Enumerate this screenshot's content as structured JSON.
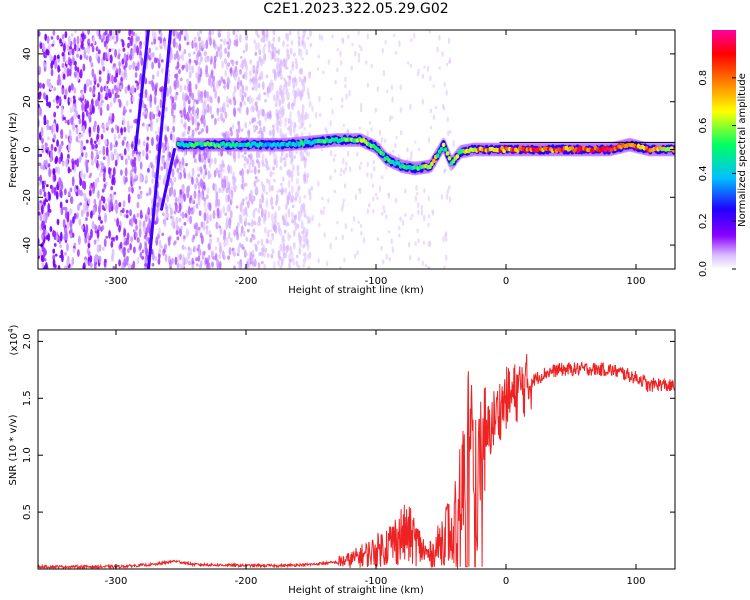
{
  "figure_title": "C2E1.2023.322.05.29.G02",
  "colorbar": {
    "label": "Normalized spectral amplitude",
    "ticks": [
      0.0,
      0.2,
      0.4,
      0.6,
      0.8
    ],
    "tick_labels": [
      "0.0",
      "0.2",
      "0.4",
      "0.6",
      "0.8"
    ],
    "range": [
      0.0,
      1.0
    ],
    "colors": [
      "#ffffff",
      "#8a00ff",
      "#2000ff",
      "#00c0ff",
      "#00ff60",
      "#ffff00",
      "#ff8000",
      "#ff0000",
      "#ff00a0"
    ]
  },
  "chart_data": [
    {
      "type": "heatmap",
      "title": "",
      "xlabel": "Height of straight line (km)",
      "ylabel": "Frequency (Hz)",
      "xlim": [
        -360,
        130
      ],
      "ylim": [
        -50,
        50
      ],
      "x_ticks": [
        -300,
        -200,
        -100,
        0,
        100
      ],
      "x_tick_labels": [
        "-300",
        "-200",
        "-100",
        "0",
        "100"
      ],
      "y_ticks": [
        -40,
        -20,
        0,
        20,
        40
      ],
      "y_tick_labels": [
        "-40",
        "-20",
        "0",
        "20",
        "40"
      ],
      "noise_region_x": [
        -360,
        -150
      ],
      "streaks": [
        {
          "x_top": -275,
          "y_top": 50,
          "x_bottom": -285,
          "y_bottom": 0
        },
        {
          "x_top": -255,
          "y_top": 0,
          "x_bottom": -265,
          "y_bottom": -25
        },
        {
          "x_top": -258,
          "y_top": 50,
          "x_bottom": -275,
          "y_bottom": -50
        }
      ],
      "ridge": [
        {
          "x": -252,
          "y": 2,
          "amp": 0.5
        },
        {
          "x": -230,
          "y": 2,
          "amp": 0.55
        },
        {
          "x": -210,
          "y": 2,
          "amp": 0.5
        },
        {
          "x": -190,
          "y": 2,
          "amp": 0.45
        },
        {
          "x": -170,
          "y": 2,
          "amp": 0.45
        },
        {
          "x": -150,
          "y": 3,
          "amp": 0.5
        },
        {
          "x": -130,
          "y": 4,
          "amp": 0.55
        },
        {
          "x": -112,
          "y": 4,
          "amp": 0.6
        },
        {
          "x": -100,
          "y": 1,
          "amp": 0.55
        },
        {
          "x": -92,
          "y": -4,
          "amp": 0.5
        },
        {
          "x": -80,
          "y": -7,
          "amp": 0.55
        },
        {
          "x": -70,
          "y": -8,
          "amp": 0.5
        },
        {
          "x": -58,
          "y": -7,
          "amp": 0.7
        },
        {
          "x": -48,
          "y": 2,
          "amp": 0.6
        },
        {
          "x": -42,
          "y": -6,
          "amp": 0.6
        },
        {
          "x": -35,
          "y": -1,
          "amp": 0.65
        },
        {
          "x": -25,
          "y": 0,
          "amp": 0.75
        },
        {
          "x": -15,
          "y": 0,
          "amp": 0.8
        },
        {
          "x": 0,
          "y": 0,
          "amp": 0.85
        },
        {
          "x": 20,
          "y": 0,
          "amp": 0.9
        },
        {
          "x": 40,
          "y": 0,
          "amp": 0.9
        },
        {
          "x": 60,
          "y": 0,
          "amp": 0.9
        },
        {
          "x": 80,
          "y": 0,
          "amp": 0.9
        },
        {
          "x": 95,
          "y": 2,
          "amp": 0.85
        },
        {
          "x": 110,
          "y": 0,
          "amp": 0.8
        },
        {
          "x": 130,
          "y": 0,
          "amp": 0.7
        }
      ]
    },
    {
      "type": "line",
      "title": "",
      "xlabel": "Height of straight line (km)",
      "ylabel": "SNR (10 * v/v)",
      "y_multiplier": "(x10",
      "y_multiplier_exp": "4",
      "y_multiplier_close": ")",
      "xlim": [
        -360,
        130
      ],
      "ylim": [
        0,
        2.1
      ],
      "x_ticks": [
        -300,
        -200,
        -100,
        0,
        100
      ],
      "x_tick_labels": [
        "-300",
        "-200",
        "-100",
        "0",
        "100"
      ],
      "y_ticks": [
        0.5,
        1.0,
        1.5,
        2.0
      ],
      "y_tick_labels": [
        "0.5",
        "1.0",
        "1.5",
        "2.0"
      ],
      "series_color": "#ee2222",
      "x": [
        -360,
        -330,
        -300,
        -270,
        -255,
        -240,
        -200,
        -170,
        -150,
        -130,
        -120,
        -110,
        -100,
        -90,
        -80,
        -75,
        -70,
        -65,
        -60,
        -55,
        -50,
        -45,
        -40,
        -35,
        -30,
        -28,
        -25,
        -22,
        -20,
        -15,
        -10,
        -5,
        0,
        5,
        10,
        20,
        30,
        40,
        60,
        80,
        90,
        100,
        105,
        110,
        115,
        120,
        130
      ],
      "y": [
        0.02,
        0.02,
        0.02,
        0.04,
        0.07,
        0.04,
        0.03,
        0.03,
        0.04,
        0.06,
        0.08,
        0.12,
        0.16,
        0.22,
        0.3,
        0.3,
        0.25,
        0.18,
        0.12,
        0.15,
        0.25,
        0.35,
        0.2,
        0.55,
        1.05,
        1.5,
        1.05,
        0.6,
        1.05,
        1.15,
        1.3,
        1.4,
        1.5,
        1.52,
        1.58,
        1.65,
        1.72,
        1.75,
        1.76,
        1.75,
        1.72,
        1.68,
        1.66,
        1.6,
        1.63,
        1.62,
        1.6
      ]
    }
  ]
}
